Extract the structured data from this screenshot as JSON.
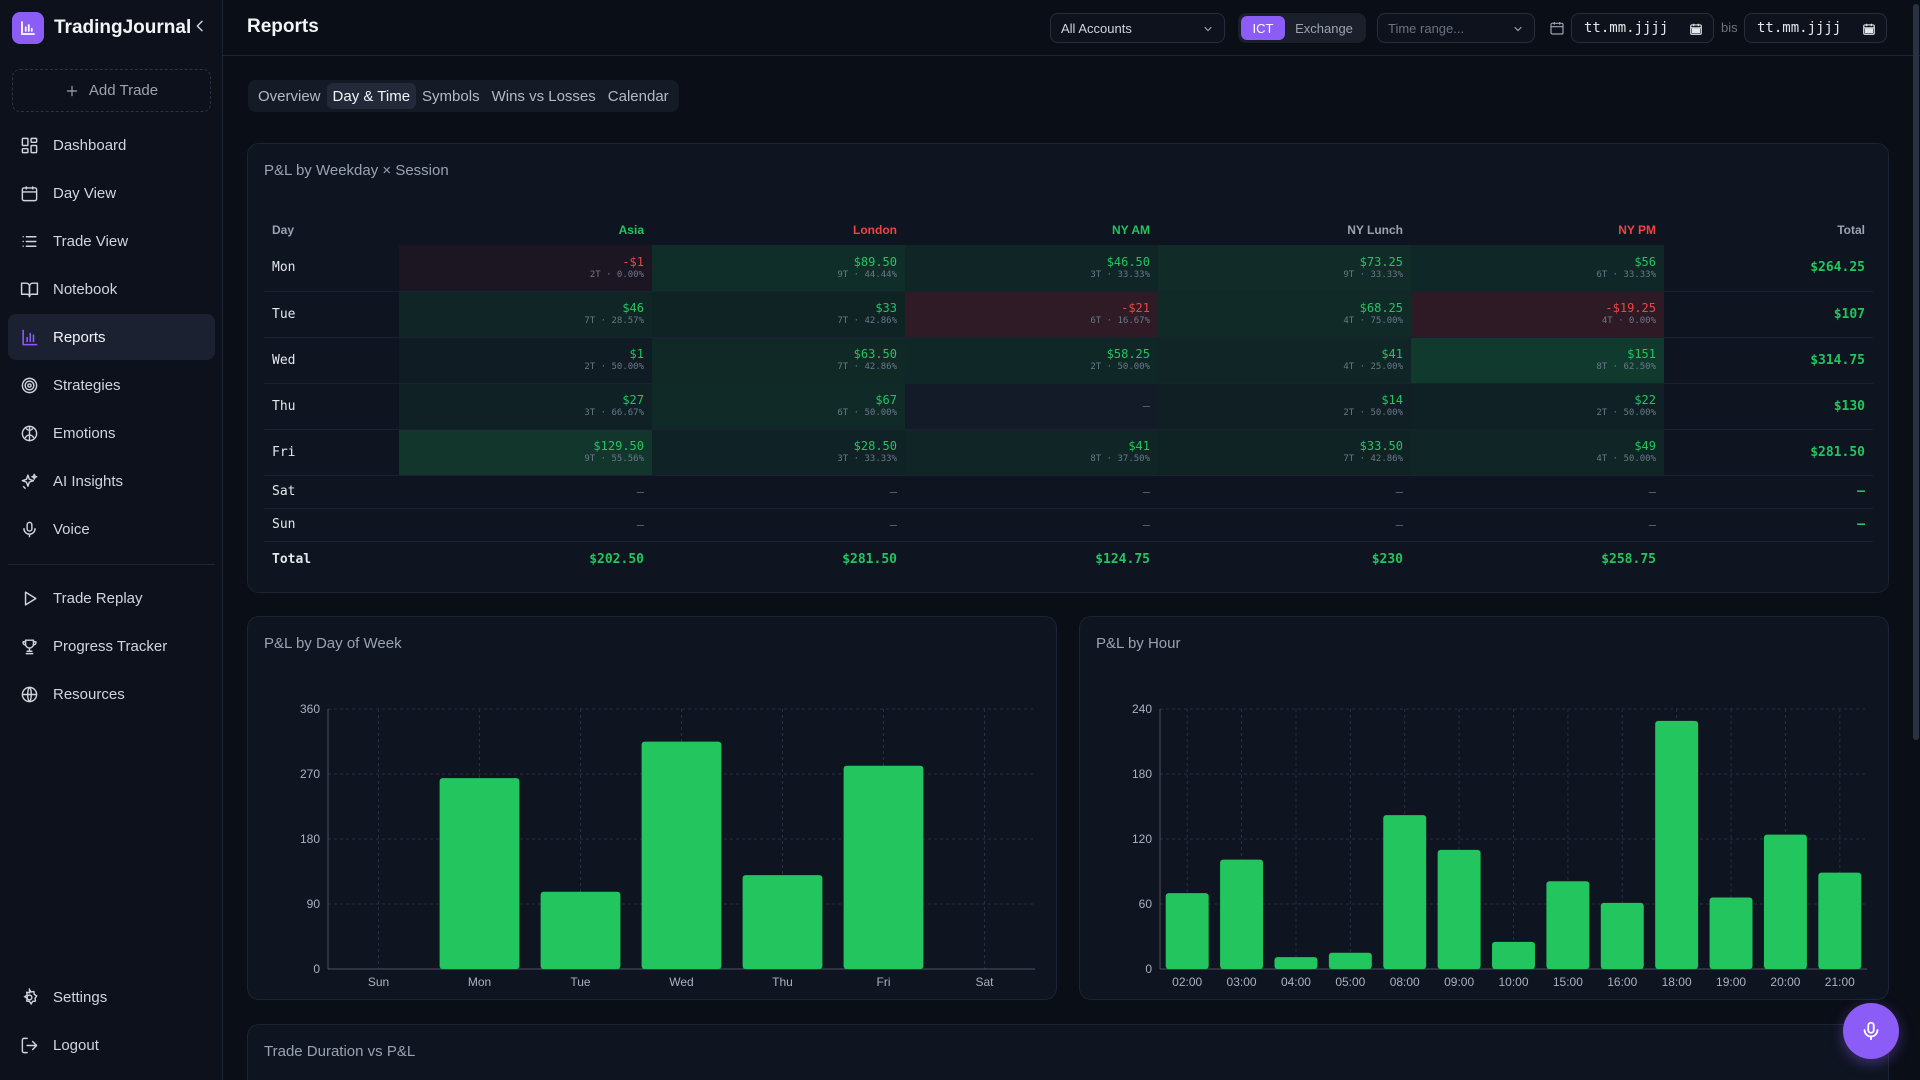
{
  "app": {
    "name": "TradingJournal"
  },
  "sidebar": {
    "add_trade": "Add Trade",
    "items": [
      {
        "label": "Dashboard",
        "icon": "dashboard-icon"
      },
      {
        "label": "Day View",
        "icon": "calendar-icon"
      },
      {
        "label": "Trade View",
        "icon": "list-icon"
      },
      {
        "label": "Notebook",
        "icon": "book-icon"
      },
      {
        "label": "Reports",
        "icon": "bar-chart-icon",
        "active": true
      },
      {
        "label": "Strategies",
        "icon": "target-icon"
      },
      {
        "label": "Emotions",
        "icon": "brain-icon"
      },
      {
        "label": "AI Insights",
        "icon": "sparkles-icon"
      },
      {
        "label": "Voice",
        "icon": "mic-icon"
      }
    ],
    "items2": [
      {
        "label": "Trade Replay",
        "icon": "play-icon"
      },
      {
        "label": "Progress Tracker",
        "icon": "trophy-icon"
      },
      {
        "label": "Resources",
        "icon": "globe-icon"
      }
    ],
    "footer": [
      {
        "label": "Settings",
        "icon": "gear-icon"
      },
      {
        "label": "Logout",
        "icon": "logout-icon"
      }
    ]
  },
  "header": {
    "title": "Reports",
    "account_select": "All Accounts",
    "tz_options": [
      "ICT",
      "Exchange"
    ],
    "tz_selected": "ICT",
    "time_range_placeholder": "Time range...",
    "date_from": "tt.mm.jjjj",
    "date_sep": "bis",
    "date_to": "tt.mm.jjjj"
  },
  "tabs": [
    "Overview",
    "Day & Time",
    "Symbols",
    "Wins vs Losses",
    "Calendar"
  ],
  "active_tab": "Day & Time",
  "heatmap": {
    "title": "P&L by Weekday × Session",
    "day_header": "Day",
    "total_header": "Total",
    "sessions": [
      {
        "name": "Asia",
        "color": "#22c55e"
      },
      {
        "name": "London",
        "color": "#ef4444"
      },
      {
        "name": "NY AM",
        "color": "#22c55e"
      },
      {
        "name": "NY Lunch",
        "color": "#9ca3af"
      },
      {
        "name": "NY PM",
        "color": "#ef4444"
      }
    ],
    "rows": [
      {
        "day": "Mon",
        "total": "$264.25",
        "cells": [
          {
            "value": "-$1",
            "sub": "2T · 0.00%",
            "neg": true
          },
          {
            "value": "$89.50",
            "sub": "9T · 44.44%"
          },
          {
            "value": "$46.50",
            "sub": "3T · 33.33%"
          },
          {
            "value": "$73.25",
            "sub": "9T · 33.33%"
          },
          {
            "value": "$56",
            "sub": "6T · 33.33%"
          }
        ]
      },
      {
        "day": "Tue",
        "total": "$107",
        "cells": [
          {
            "value": "$46",
            "sub": "7T · 28.57%"
          },
          {
            "value": "$33",
            "sub": "7T · 42.86%"
          },
          {
            "value": "-$21",
            "sub": "6T · 16.67%",
            "neg": true
          },
          {
            "value": "$68.25",
            "sub": "4T · 75.00%"
          },
          {
            "value": "-$19.25",
            "sub": "4T · 0.00%",
            "neg": true
          }
        ]
      },
      {
        "day": "Wed",
        "total": "$314.75",
        "cells": [
          {
            "value": "$1",
            "sub": "2T · 50.00%"
          },
          {
            "value": "$63.50",
            "sub": "7T · 42.86%"
          },
          {
            "value": "$58.25",
            "sub": "2T · 50.00%"
          },
          {
            "value": "$41",
            "sub": "4T · 25.00%"
          },
          {
            "value": "$151",
            "sub": "8T · 62.50%"
          }
        ]
      },
      {
        "day": "Thu",
        "total": "$130",
        "cells": [
          {
            "value": "$27",
            "sub": "3T · 66.67%"
          },
          {
            "value": "$67",
            "sub": "6T · 50.00%"
          },
          {
            "value": "—",
            "sub": ""
          },
          {
            "value": "$14",
            "sub": "2T · 50.00%"
          },
          {
            "value": "$22",
            "sub": "2T · 50.00%"
          }
        ]
      },
      {
        "day": "Fri",
        "total": "$281.50",
        "cells": [
          {
            "value": "$129.50",
            "sub": "9T · 55.56%"
          },
          {
            "value": "$28.50",
            "sub": "3T · 33.33%"
          },
          {
            "value": "$41",
            "sub": "8T · 37.50%"
          },
          {
            "value": "$33.50",
            "sub": "7T · 42.86%"
          },
          {
            "value": "$49",
            "sub": "4T · 50.00%"
          }
        ]
      },
      {
        "day": "Sat",
        "total": "—",
        "cells": [
          {
            "value": "—",
            "sub": ""
          },
          {
            "value": "—",
            "sub": ""
          },
          {
            "value": "—",
            "sub": ""
          },
          {
            "value": "—",
            "sub": ""
          },
          {
            "value": "—",
            "sub": ""
          }
        ]
      },
      {
        "day": "Sun",
        "total": "—",
        "cells": [
          {
            "value": "—",
            "sub": ""
          },
          {
            "value": "—",
            "sub": ""
          },
          {
            "value": "—",
            "sub": ""
          },
          {
            "value": "—",
            "sub": ""
          },
          {
            "value": "—",
            "sub": ""
          }
        ]
      }
    ],
    "totals_label": "Total",
    "totals": [
      "$202.50",
      "$281.50",
      "$124.75",
      "$230",
      "$258.75"
    ]
  },
  "cards": {
    "dow_title": "P&L by Day of Week",
    "hour_title": "P&L by Hour",
    "duration_title": "Trade Duration vs P&L"
  },
  "chart_data": [
    {
      "type": "bar",
      "title": "P&L by Day of Week",
      "categories": [
        "Sun",
        "Mon",
        "Tue",
        "Wed",
        "Thu",
        "Fri",
        "Sat"
      ],
      "values": [
        0,
        264.25,
        107,
        314.75,
        130,
        281.5,
        0
      ],
      "yticks": [
        0,
        90,
        180,
        270,
        360
      ],
      "ylim": [
        0,
        360
      ],
      "grid": true,
      "bar_color": "#22c55e"
    },
    {
      "type": "bar",
      "title": "P&L by Hour",
      "categories": [
        "02:00",
        "03:00",
        "04:00",
        "05:00",
        "08:00",
        "09:00",
        "10:00",
        "15:00",
        "16:00",
        "18:00",
        "19:00",
        "20:00",
        "21:00"
      ],
      "values": [
        70,
        101,
        11,
        15,
        142,
        110,
        25,
        81,
        61,
        229,
        66,
        124,
        89
      ],
      "yticks": [
        0,
        60,
        120,
        180,
        240
      ],
      "ylim": [
        0,
        240
      ],
      "grid": true,
      "bar_color": "#22c55e"
    }
  ],
  "colors": {
    "accent": "#8b5cf6",
    "positive": "#22c55e",
    "negative": "#ef4444"
  }
}
